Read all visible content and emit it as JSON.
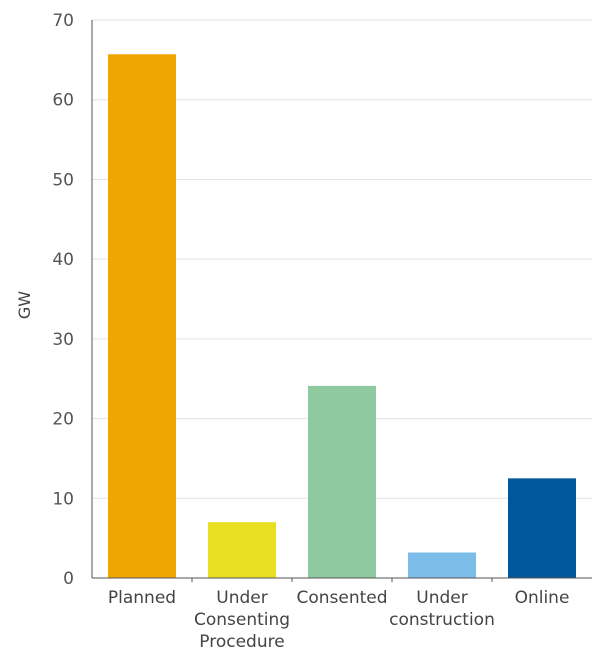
{
  "chart_data": {
    "type": "bar",
    "title": "",
    "xlabel": "",
    "ylabel": "GW",
    "ylim": [
      0,
      70
    ],
    "yticks": [
      0,
      10,
      20,
      30,
      40,
      50,
      60,
      70
    ],
    "grid": true,
    "categories": [
      [
        "Planned"
      ],
      [
        "Under",
        "Consenting",
        "Procedure"
      ],
      [
        "Consented"
      ],
      [
        "Under",
        "construction"
      ],
      [
        "Online"
      ]
    ],
    "values": [
      65.7,
      7.0,
      24.1,
      3.2,
      12.5
    ],
    "colors": [
      "#f0a500",
      "#e8df22",
      "#8ec9a0",
      "#7bbde8",
      "#00579b"
    ]
  }
}
